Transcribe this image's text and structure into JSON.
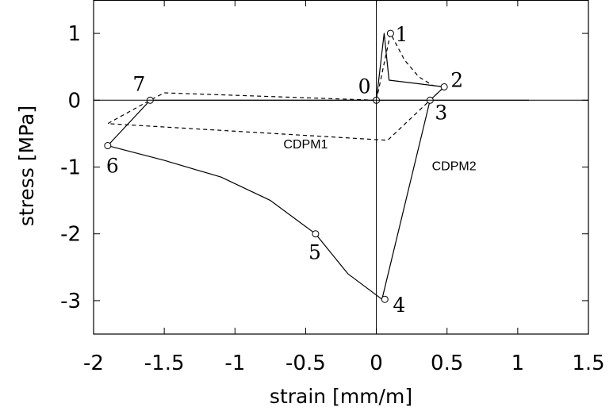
{
  "chart_data": {
    "type": "line",
    "xlabel": "strain [mm/m]",
    "ylabel": "stress [MPa]",
    "xlim": [
      -2,
      1.5
    ],
    "ylim": [
      -3.5,
      1.5
    ],
    "x_ticks": [
      -2,
      -1.5,
      -1,
      -0.5,
      0,
      0.5,
      1,
      1.5
    ],
    "x_tick_labels": [
      "-2",
      "-1.5",
      "-1",
      "-0.5",
      "0",
      "0.5",
      "1",
      "1.5"
    ],
    "y_ticks": [
      -3,
      -2,
      -1,
      0,
      1
    ],
    "y_tick_labels": [
      "-3",
      "-2",
      "-1",
      "0",
      "1"
    ],
    "grid": false,
    "series": [
      {
        "name": "CDPM2",
        "style": "solid",
        "color": "#000000",
        "points": [
          [
            0,
            0
          ],
          [
            0.055,
            1
          ],
          [
            0.09,
            0.3
          ],
          [
            0.48,
            0.2
          ],
          [
            0.38,
            0
          ],
          [
            0.04,
            -2.98
          ],
          [
            -0.2,
            -2.6
          ],
          [
            -0.43,
            -2.0
          ],
          [
            -0.75,
            -1.5
          ],
          [
            -1.1,
            -1.15
          ],
          [
            -1.5,
            -0.9
          ],
          [
            -1.9,
            -0.68
          ],
          [
            -1.6,
            0
          ],
          [
            1.08,
            0
          ]
        ]
      },
      {
        "name": "CDPM1",
        "style": "dashed",
        "color": "#000000",
        "points": [
          [
            0,
            0
          ],
          [
            0.1,
            1
          ],
          [
            0.2,
            0.6
          ],
          [
            0.3,
            0.35
          ],
          [
            0.4,
            0.22
          ],
          [
            0.48,
            0.2
          ],
          [
            0.38,
            0
          ],
          [
            0.08,
            -0.6
          ],
          [
            -1.9,
            -0.35
          ],
          [
            -1.6,
            0
          ],
          [
            -1.5,
            0.11
          ],
          [
            0,
            0
          ]
        ]
      }
    ],
    "markers": [
      {
        "label": "0",
        "x": 0,
        "y": 0
      },
      {
        "label": "1",
        "x": 0.1,
        "y": 1.0
      },
      {
        "label": "2",
        "x": 0.48,
        "y": 0.2
      },
      {
        "label": "3",
        "x": 0.38,
        "y": 0
      },
      {
        "label": "4",
        "x": 0.06,
        "y": -2.98
      },
      {
        "label": "5",
        "x": -0.43,
        "y": -2.0
      },
      {
        "label": "6",
        "x": -1.9,
        "y": -0.68
      },
      {
        "label": "7",
        "x": -1.6,
        "y": 0
      }
    ],
    "annotations": [
      {
        "text": "CDPM1",
        "x": -0.5,
        "y": -0.72
      },
      {
        "text": "CDPM2",
        "x": 0.55,
        "y": -1.05
      }
    ]
  }
}
